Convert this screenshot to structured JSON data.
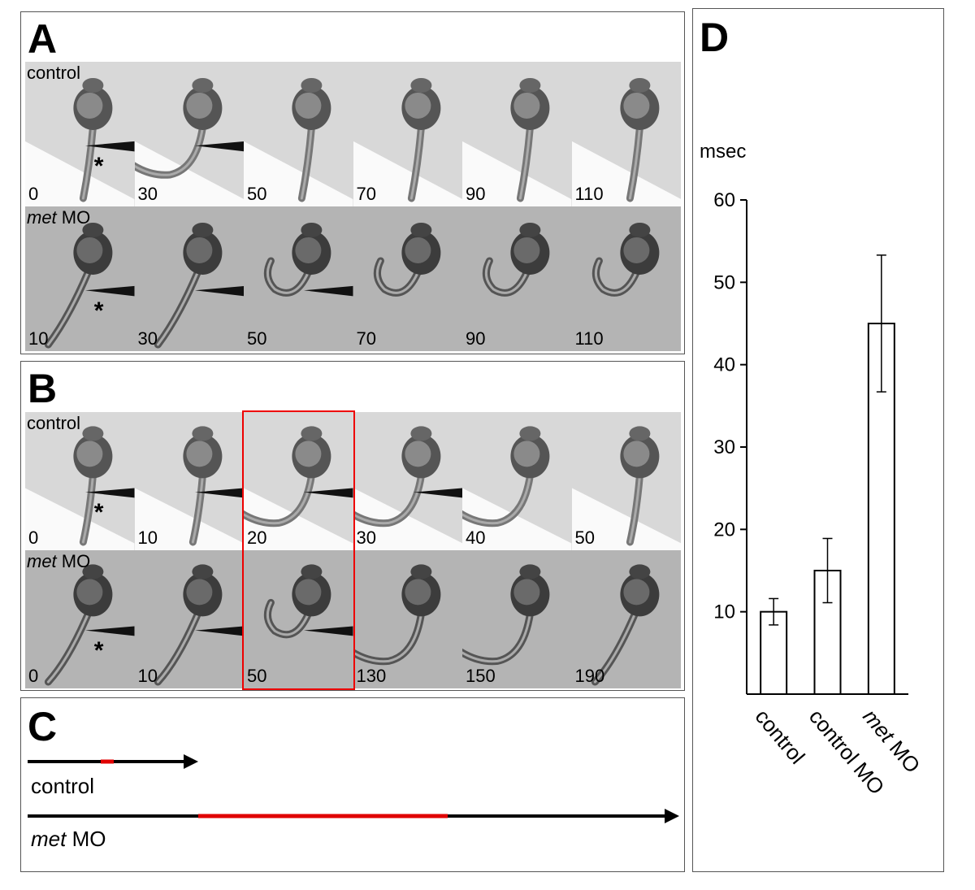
{
  "panels": {
    "A": {
      "letter": "A",
      "rows": [
        {
          "label_italic": "",
          "label_plain": "control",
          "times": [
            "0",
            "30",
            "50",
            "70",
            "90",
            "110"
          ],
          "bg": "light",
          "tails": [
            "down",
            "curl-left",
            "down",
            "down",
            "down",
            "down"
          ]
        },
        {
          "label_italic": "met",
          "label_plain": " MO",
          "times": [
            "10",
            "30",
            "50",
            "70",
            "90",
            "110"
          ],
          "bg": "dark",
          "tails": [
            "down-left",
            "down-left",
            "curl-right",
            "curl-right",
            "curl-right",
            "curl-right"
          ]
        }
      ]
    },
    "B": {
      "letter": "B",
      "rows": [
        {
          "label_italic": "",
          "label_plain": "control",
          "times": [
            "0",
            "10",
            "20",
            "30",
            "40",
            "50"
          ],
          "bg": "light",
          "tails": [
            "down",
            "down",
            "curl-left",
            "curl-left",
            "curl-left",
            "down"
          ]
        },
        {
          "label_italic": "met",
          "label_plain": " MO",
          "times": [
            "0",
            "10",
            "50",
            "130",
            "150",
            "190"
          ],
          "bg": "dark",
          "tails": [
            "down-left",
            "down-left",
            "curl-right",
            "curl-left",
            "curl-left",
            "down-left"
          ]
        }
      ]
    },
    "C": {
      "letter": "C",
      "control_label": "control",
      "met_label_italic": "met",
      "met_label_plain": " MO"
    },
    "D": {
      "letter": "D"
    }
  },
  "star": "*",
  "colors": {
    "highlight": "#e00000",
    "axis": "#000000",
    "arrow": "#000000"
  },
  "chart_data": {
    "type": "bar",
    "ylabel": "msec",
    "ylim": [
      0,
      60
    ],
    "yticks": [
      10,
      20,
      30,
      40,
      50,
      60
    ],
    "categories": [
      "control",
      "control MO",
      "met MO"
    ],
    "categories_italic_prefix": [
      "",
      "",
      "met"
    ],
    "categories_plain_suffix": [
      "control",
      "control MO",
      " MO"
    ],
    "values": [
      10,
      15,
      45
    ],
    "errors": [
      1.6,
      3.9,
      8.3
    ]
  }
}
